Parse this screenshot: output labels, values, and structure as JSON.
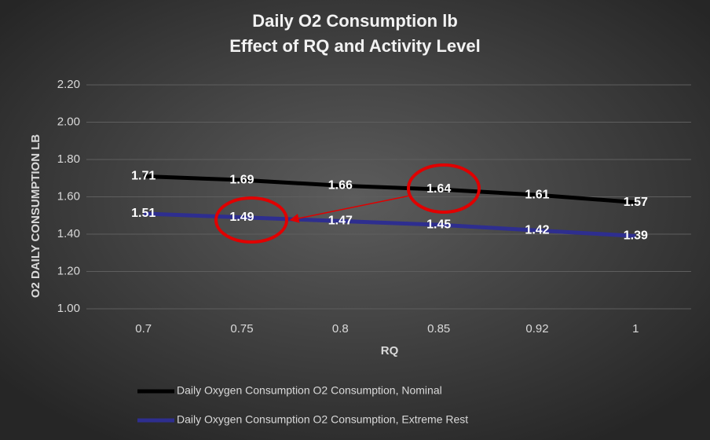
{
  "chart_data": {
    "type": "line",
    "title": "Daily O2 Consumption  lb",
    "subtitle": "Effect of RQ and Activity Level",
    "x_label": "RQ",
    "y_label": "O2 DAILY CONSUMPTION  LB",
    "categories": [
      "0.7",
      "0.75",
      "0.8",
      "0.85",
      "0.92",
      "1"
    ],
    "series": [
      {
        "name": "Daily Oxygen Consumption O2 Consumption, Nominal",
        "color": "#000000",
        "values": [
          1.71,
          1.69,
          1.66,
          1.64,
          1.61,
          1.57
        ]
      },
      {
        "name": "Daily Oxygen Consumption O2 Consumption, Extreme Rest",
        "color": "#2e2e8f",
        "values": [
          1.51,
          1.49,
          1.47,
          1.45,
          1.42,
          1.39
        ]
      }
    ],
    "ylim": [
      1.0,
      2.2
    ],
    "yticks": [
      {
        "value": 1.0,
        "label": "1.00"
      },
      {
        "value": 1.2,
        "label": "1.20"
      },
      {
        "value": 1.4,
        "label": "1.40"
      },
      {
        "value": 1.6,
        "label": "1.60"
      },
      {
        "value": 1.8,
        "label": "1.80"
      },
      {
        "value": 2.0,
        "label": "2.00"
      },
      {
        "value": 2.2,
        "label": "2.20"
      }
    ],
    "grid": true,
    "legend": "bottom"
  }
}
